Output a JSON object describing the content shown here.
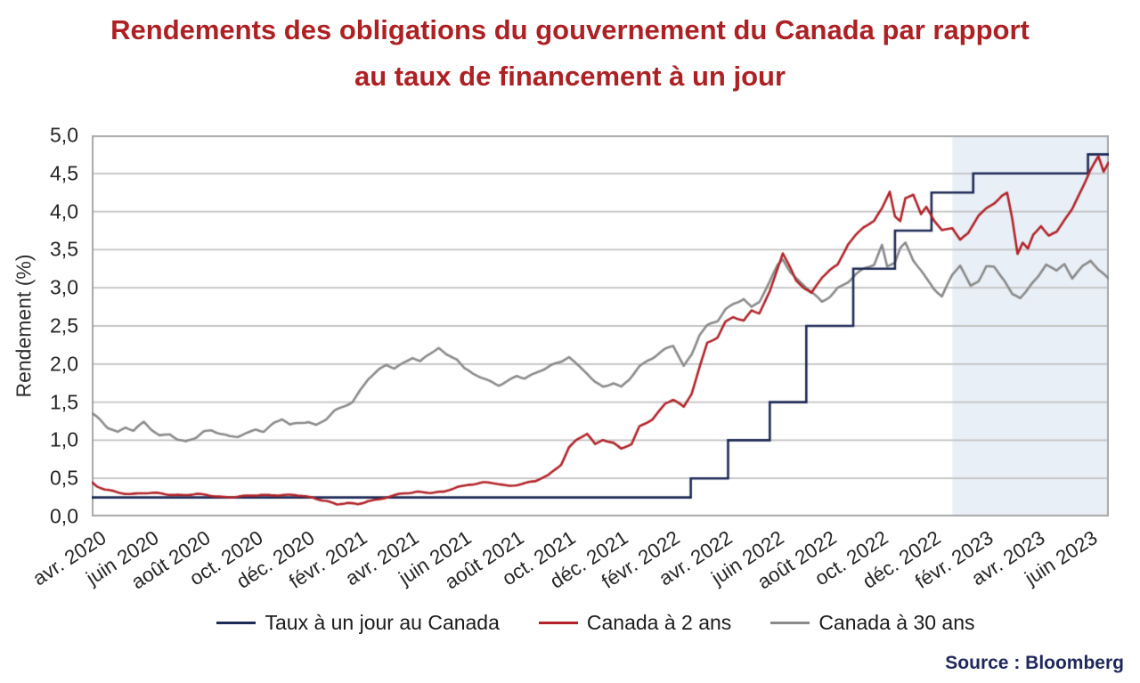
{
  "title": {
    "line1": "Rendements des obligations du gouvernement du Canada par rapport",
    "line2": "au taux de financement à un jour"
  },
  "source": "Source : Bloomberg",
  "colors": {
    "title": "#ad2124",
    "overnight_line": "#1e2a56",
    "two_year_line": "#b12329",
    "thirty_year_line": "#8a8a8a",
    "shade": "#e9eff6",
    "grid": "#c2c2c2",
    "plot_border": "#a8a8a8",
    "axis_text": "#262626",
    "source_text": "#20285c"
  },
  "chart_data": {
    "type": "line",
    "title": "Rendements des obligations du gouvernement du Canada par rapport au taux de financement à un jour",
    "xlabel": "",
    "ylabel": "Rendement (%)",
    "ylim": [
      0.0,
      5.0
    ],
    "ytick_step": 0.5,
    "ytick_labels_top_to_bottom": [
      "5,0",
      "4,5",
      "4,0",
      "3,5",
      "3,0",
      "2,5",
      "2,0",
      "1,5",
      "1,0",
      "0,5",
      "0,0"
    ],
    "x_unit": "months since avril 2020 (0 = avr. 2020)",
    "xlim": [
      0,
      39
    ],
    "xtick_positions": [
      0,
      2,
      4,
      6,
      8,
      10,
      12,
      14,
      16,
      18,
      20,
      22,
      24,
      26,
      28,
      30,
      32,
      34,
      36,
      38
    ],
    "xtick_labels": [
      "avr. 2020",
      "juin 2020",
      "août 2020",
      "oct. 2020",
      "déc. 2020",
      "févr. 2021",
      "avr. 2021",
      "juin 2021",
      "août 2021",
      "oct. 2021",
      "déc. 2021",
      "févr. 2022",
      "avr. 2022",
      "juin 2022",
      "août 2022",
      "oct. 2022",
      "déc. 2022",
      "févr. 2023",
      "avr. 2023",
      "juin 2023"
    ],
    "grid": "horizontal",
    "legend_position": "bottom",
    "shaded_region": {
      "from_x": 33,
      "to_x": 39,
      "note": "zone ombrée à partir de janv. 2023"
    },
    "series": [
      {
        "name": "Taux à un jour au Canada",
        "color_key": "overnight_line",
        "style": "step",
        "points": [
          [
            0,
            0.25
          ],
          [
            22.97,
            0.5
          ],
          [
            24.4,
            1.0
          ],
          [
            26.0,
            1.5
          ],
          [
            27.4,
            2.5
          ],
          [
            29.2,
            3.25
          ],
          [
            30.8,
            3.75
          ],
          [
            32.2,
            4.25
          ],
          [
            33.8,
            4.5
          ],
          [
            38.2,
            4.75
          ],
          [
            39,
            4.75
          ]
        ]
      },
      {
        "name": "Canada à 2 ans",
        "color_key": "two_year_line",
        "style": "line",
        "points": [
          [
            0,
            0.46
          ],
          [
            0.2,
            0.4
          ],
          [
            0.5,
            0.36
          ],
          [
            1,
            0.32
          ],
          [
            1.5,
            0.3
          ],
          [
            2,
            0.3
          ],
          [
            2.5,
            0.29
          ],
          [
            3,
            0.28
          ],
          [
            3.5,
            0.28
          ],
          [
            4,
            0.29
          ],
          [
            4.5,
            0.28
          ],
          [
            5,
            0.27
          ],
          [
            5.5,
            0.27
          ],
          [
            6,
            0.27
          ],
          [
            6.5,
            0.28
          ],
          [
            7,
            0.28
          ],
          [
            7.5,
            0.27
          ],
          [
            8,
            0.26
          ],
          [
            8.5,
            0.24
          ],
          [
            9,
            0.21
          ],
          [
            9.4,
            0.16
          ],
          [
            9.8,
            0.18
          ],
          [
            10.2,
            0.17
          ],
          [
            10.6,
            0.22
          ],
          [
            11,
            0.23
          ],
          [
            11.5,
            0.26
          ],
          [
            12,
            0.3
          ],
          [
            12.5,
            0.32
          ],
          [
            13,
            0.3
          ],
          [
            13.5,
            0.31
          ],
          [
            14,
            0.39
          ],
          [
            14.5,
            0.43
          ],
          [
            15,
            0.45
          ],
          [
            15.5,
            0.44
          ],
          [
            16,
            0.41
          ],
          [
            16.5,
            0.43
          ],
          [
            17,
            0.45
          ],
          [
            17.5,
            0.53
          ],
          [
            18,
            0.68
          ],
          [
            18.3,
            0.9
          ],
          [
            18.6,
            1.0
          ],
          [
            19,
            1.08
          ],
          [
            19.3,
            0.95
          ],
          [
            19.6,
            1.02
          ],
          [
            20,
            0.98
          ],
          [
            20.3,
            0.9
          ],
          [
            20.7,
            0.95
          ],
          [
            21,
            1.18
          ],
          [
            21.5,
            1.28
          ],
          [
            22,
            1.48
          ],
          [
            22.3,
            1.52
          ],
          [
            22.7,
            1.42
          ],
          [
            23,
            1.6
          ],
          [
            23.3,
            1.95
          ],
          [
            23.6,
            2.28
          ],
          [
            24,
            2.35
          ],
          [
            24.3,
            2.55
          ],
          [
            24.6,
            2.62
          ],
          [
            25,
            2.58
          ],
          [
            25.3,
            2.72
          ],
          [
            25.6,
            2.68
          ],
          [
            26,
            2.95
          ],
          [
            26.3,
            3.25
          ],
          [
            26.5,
            3.45
          ],
          [
            26.8,
            3.25
          ],
          [
            27,
            3.1
          ],
          [
            27.3,
            3.0
          ],
          [
            27.6,
            2.92
          ],
          [
            28,
            3.12
          ],
          [
            28.3,
            3.22
          ],
          [
            28.6,
            3.3
          ],
          [
            29,
            3.58
          ],
          [
            29.3,
            3.7
          ],
          [
            29.6,
            3.8
          ],
          [
            30,
            3.88
          ],
          [
            30.3,
            4.05
          ],
          [
            30.6,
            4.28
          ],
          [
            30.8,
            3.95
          ],
          [
            31,
            3.88
          ],
          [
            31.2,
            4.18
          ],
          [
            31.5,
            4.22
          ],
          [
            31.8,
            3.95
          ],
          [
            32,
            4.05
          ],
          [
            32.3,
            3.88
          ],
          [
            32.6,
            3.75
          ],
          [
            33,
            3.78
          ],
          [
            33.3,
            3.62
          ],
          [
            33.6,
            3.7
          ],
          [
            34,
            3.95
          ],
          [
            34.3,
            4.05
          ],
          [
            34.6,
            4.12
          ],
          [
            34.9,
            4.22
          ],
          [
            35.1,
            4.25
          ],
          [
            35.3,
            3.9
          ],
          [
            35.5,
            3.45
          ],
          [
            35.7,
            3.6
          ],
          [
            35.9,
            3.52
          ],
          [
            36.1,
            3.7
          ],
          [
            36.4,
            3.82
          ],
          [
            36.7,
            3.68
          ],
          [
            37,
            3.72
          ],
          [
            37.3,
            3.88
          ],
          [
            37.6,
            4.02
          ],
          [
            38,
            4.32
          ],
          [
            38.3,
            4.55
          ],
          [
            38.6,
            4.72
          ],
          [
            38.8,
            4.52
          ],
          [
            39,
            4.65
          ]
        ]
      },
      {
        "name": "Canada à 30 ans",
        "color_key": "thirty_year_line",
        "style": "line",
        "points": [
          [
            0,
            1.36
          ],
          [
            0.3,
            1.28
          ],
          [
            0.6,
            1.18
          ],
          [
            1,
            1.12
          ],
          [
            1.3,
            1.18
          ],
          [
            1.6,
            1.12
          ],
          [
            2,
            1.22
          ],
          [
            2.3,
            1.12
          ],
          [
            2.6,
            1.05
          ],
          [
            3,
            1.08
          ],
          [
            3.3,
            1.0
          ],
          [
            3.6,
            0.97
          ],
          [
            4,
            1.03
          ],
          [
            4.3,
            1.12
          ],
          [
            4.6,
            1.15
          ],
          [
            5,
            1.1
          ],
          [
            5.3,
            1.06
          ],
          [
            5.6,
            1.05
          ],
          [
            6,
            1.1
          ],
          [
            6.3,
            1.15
          ],
          [
            6.6,
            1.12
          ],
          [
            7,
            1.22
          ],
          [
            7.3,
            1.26
          ],
          [
            7.6,
            1.18
          ],
          [
            8,
            1.22
          ],
          [
            8.3,
            1.24
          ],
          [
            8.6,
            1.2
          ],
          [
            9,
            1.28
          ],
          [
            9.3,
            1.38
          ],
          [
            9.6,
            1.44
          ],
          [
            10,
            1.52
          ],
          [
            10.3,
            1.68
          ],
          [
            10.6,
            1.82
          ],
          [
            11,
            1.92
          ],
          [
            11.3,
            1.98
          ],
          [
            11.6,
            1.94
          ],
          [
            12,
            2.02
          ],
          [
            12.3,
            2.08
          ],
          [
            12.6,
            2.02
          ],
          [
            13,
            2.12
          ],
          [
            13.3,
            2.2
          ],
          [
            13.6,
            2.12
          ],
          [
            14,
            2.08
          ],
          [
            14.3,
            1.95
          ],
          [
            14.6,
            1.88
          ],
          [
            15,
            1.82
          ],
          [
            15.3,
            1.78
          ],
          [
            15.6,
            1.74
          ],
          [
            16,
            1.8
          ],
          [
            16.3,
            1.84
          ],
          [
            16.6,
            1.8
          ],
          [
            17,
            1.86
          ],
          [
            17.3,
            1.92
          ],
          [
            17.6,
            1.98
          ],
          [
            18,
            2.02
          ],
          [
            18.3,
            2.08
          ],
          [
            18.6,
            1.98
          ],
          [
            19,
            1.88
          ],
          [
            19.3,
            1.78
          ],
          [
            19.6,
            1.72
          ],
          [
            20,
            1.76
          ],
          [
            20.3,
            1.7
          ],
          [
            20.6,
            1.8
          ],
          [
            21,
            1.98
          ],
          [
            21.3,
            2.05
          ],
          [
            21.6,
            2.1
          ],
          [
            22,
            2.18
          ],
          [
            22.3,
            2.22
          ],
          [
            22.7,
            1.96
          ],
          [
            23,
            2.12
          ],
          [
            23.3,
            2.38
          ],
          [
            23.6,
            2.5
          ],
          [
            24,
            2.56
          ],
          [
            24.3,
            2.72
          ],
          [
            24.6,
            2.8
          ],
          [
            25,
            2.88
          ],
          [
            25.3,
            2.76
          ],
          [
            25.6,
            2.82
          ],
          [
            26,
            3.08
          ],
          [
            26.3,
            3.3
          ],
          [
            26.5,
            3.38
          ],
          [
            26.8,
            3.2
          ],
          [
            27,
            3.12
          ],
          [
            27.3,
            3.02
          ],
          [
            27.6,
            2.92
          ],
          [
            28,
            2.8
          ],
          [
            28.3,
            2.88
          ],
          [
            28.6,
            3.0
          ],
          [
            29,
            3.08
          ],
          [
            29.3,
            3.18
          ],
          [
            29.6,
            3.25
          ],
          [
            30,
            3.32
          ],
          [
            30.3,
            3.58
          ],
          [
            30.5,
            3.3
          ],
          [
            30.8,
            3.35
          ],
          [
            31,
            3.52
          ],
          [
            31.2,
            3.58
          ],
          [
            31.5,
            3.35
          ],
          [
            31.8,
            3.22
          ],
          [
            32,
            3.12
          ],
          [
            32.3,
            2.98
          ],
          [
            32.6,
            2.88
          ],
          [
            33,
            3.15
          ],
          [
            33.3,
            3.28
          ],
          [
            33.7,
            3.02
          ],
          [
            34,
            3.1
          ],
          [
            34.3,
            3.3
          ],
          [
            34.6,
            3.28
          ],
          [
            35,
            3.1
          ],
          [
            35.3,
            2.92
          ],
          [
            35.6,
            2.88
          ],
          [
            36,
            3.05
          ],
          [
            36.3,
            3.15
          ],
          [
            36.6,
            3.3
          ],
          [
            37,
            3.2
          ],
          [
            37.3,
            3.3
          ],
          [
            37.6,
            3.12
          ],
          [
            38,
            3.28
          ],
          [
            38.3,
            3.35
          ],
          [
            38.6,
            3.22
          ],
          [
            39,
            3.12
          ]
        ]
      }
    ]
  }
}
